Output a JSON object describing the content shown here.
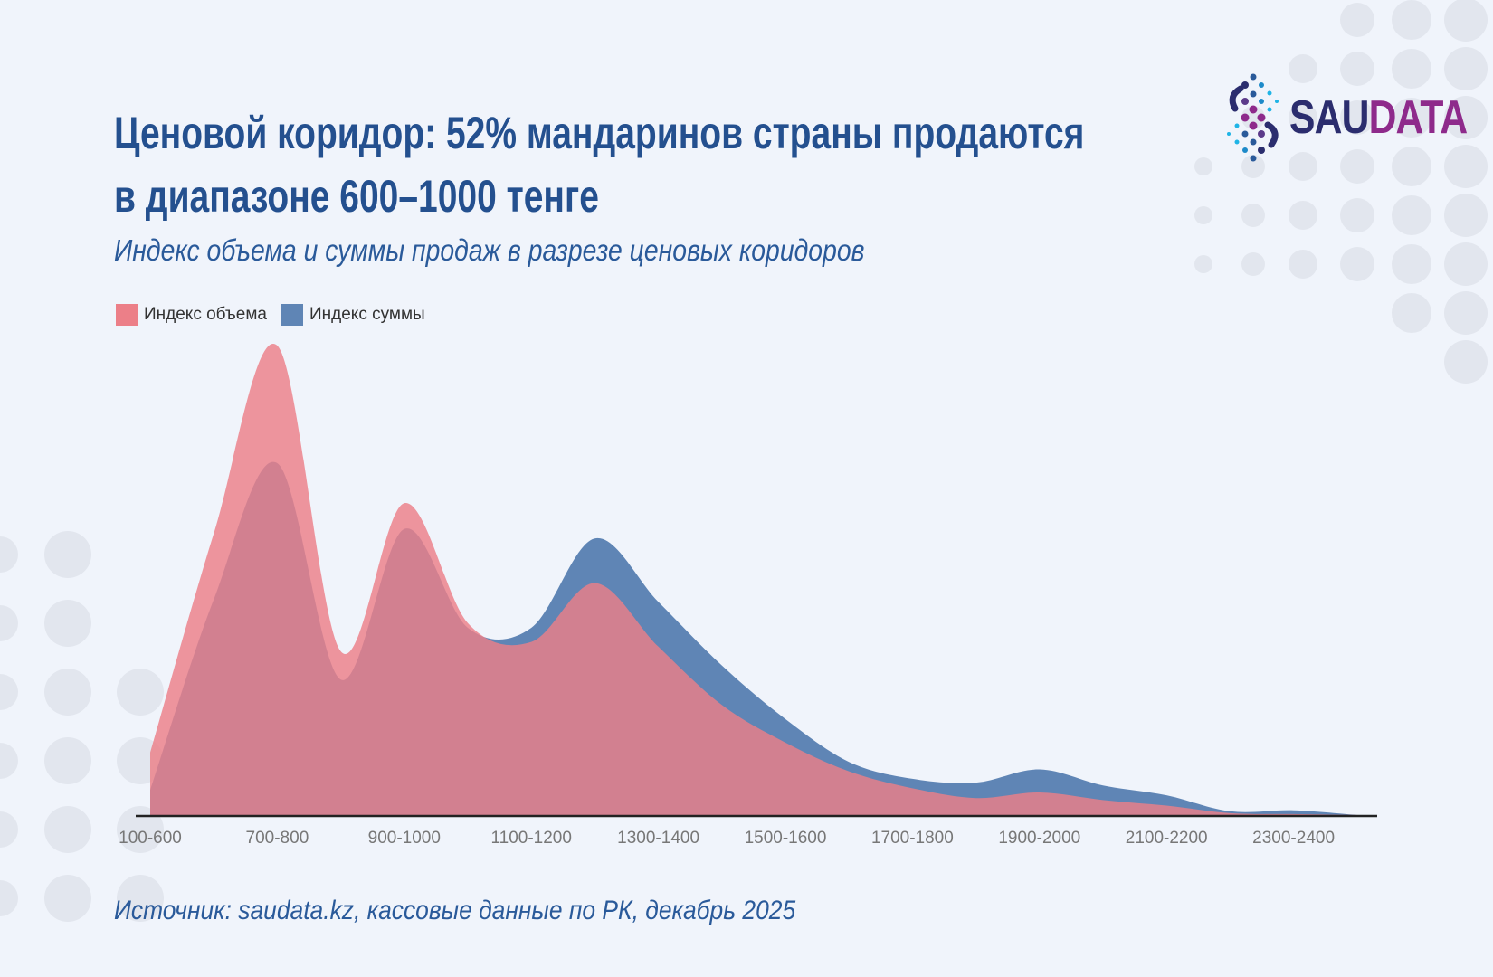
{
  "header": {
    "title_line1": "Ценовой коридор: 52% мандаринов страны продаются",
    "title_line2": "в диапазоне 600–1000 тенге",
    "subtitle": "Индекс объема и суммы продаж в разрезе ценовых коридоров"
  },
  "logo": {
    "part1": "SAU",
    "part2": "DATA",
    "color1": "#2b2d6e",
    "color2": "#8e2a8b"
  },
  "source": "Источник: saudata.kz, кассовые данные по РК, декабрь 2025",
  "chart_data": {
    "type": "area",
    "smooth": true,
    "legend_position": "top-left",
    "grid": false,
    "y_axis_shown": false,
    "tick_labels": [
      "100-600",
      "700-800",
      "900-1000",
      "1100-1200",
      "1300-1400",
      "1500-1600",
      "1700-1800",
      "1900-2000",
      "2100-2200",
      "2300-2400"
    ],
    "tick_every": 2,
    "point_count": 20,
    "series": [
      {
        "name": "Индекс суммы",
        "color": "#5f85b5",
        "values": [
          5.5,
          46,
          75,
          29,
          61,
          40,
          40,
          59,
          45.5,
          32,
          20.6,
          11.5,
          7.9,
          7.1,
          9.9,
          6.5,
          4.4,
          1,
          1.2,
          0.2
        ]
      },
      {
        "name": "Индекс объема",
        "color": "#ec7f88",
        "values": [
          13.5,
          60,
          100,
          35,
          66.5,
          41,
          37,
          49.5,
          36,
          23.6,
          15.6,
          9.5,
          5.9,
          3.8,
          5,
          3.4,
          2.2,
          0.6,
          0.4,
          0.2
        ]
      }
    ]
  }
}
